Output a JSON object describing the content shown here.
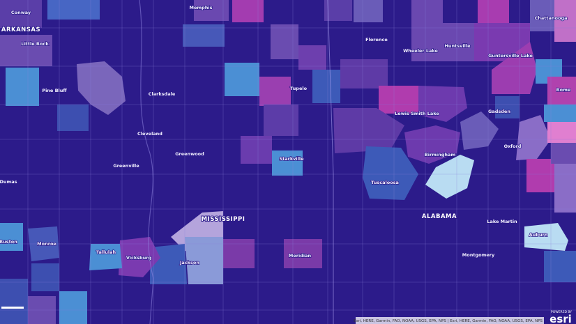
{
  "places": [
    "Conway",
    "ARKANSAS",
    "Little Rock",
    "Memphis",
    "Pine Bluff",
    "Clarksdale",
    "Cleveland",
    "Greenwood",
    "Greenville",
    "Dumas",
    "Starkville",
    "Tupelo",
    "MISSISSIPPI",
    "Jackson",
    "Vicksburg",
    "Tallulah",
    "Monroe",
    "Ruston",
    "Meridian",
    "Tuscaloosa",
    "ALABAMA",
    "Birmingham",
    "Montgomery",
    "Auburn",
    "Lake Martin",
    "Gadsden",
    "Oxford",
    "Florence",
    "Wheeler Lake",
    "Huntsville",
    "Guntersville Lake",
    "Chattanooga",
    "Rome",
    "Lewis Smith Lake"
  ],
  "attribution": "Esri, HERE, Garmin, FAO, NOAA, USGS, EPA, NPS | Esri, HERE, Garmin, FAO, NOAA, USGS, EPA, NPS",
  "logo": {
    "powered_by": "POWERED BY",
    "brand": "esri"
  }
}
